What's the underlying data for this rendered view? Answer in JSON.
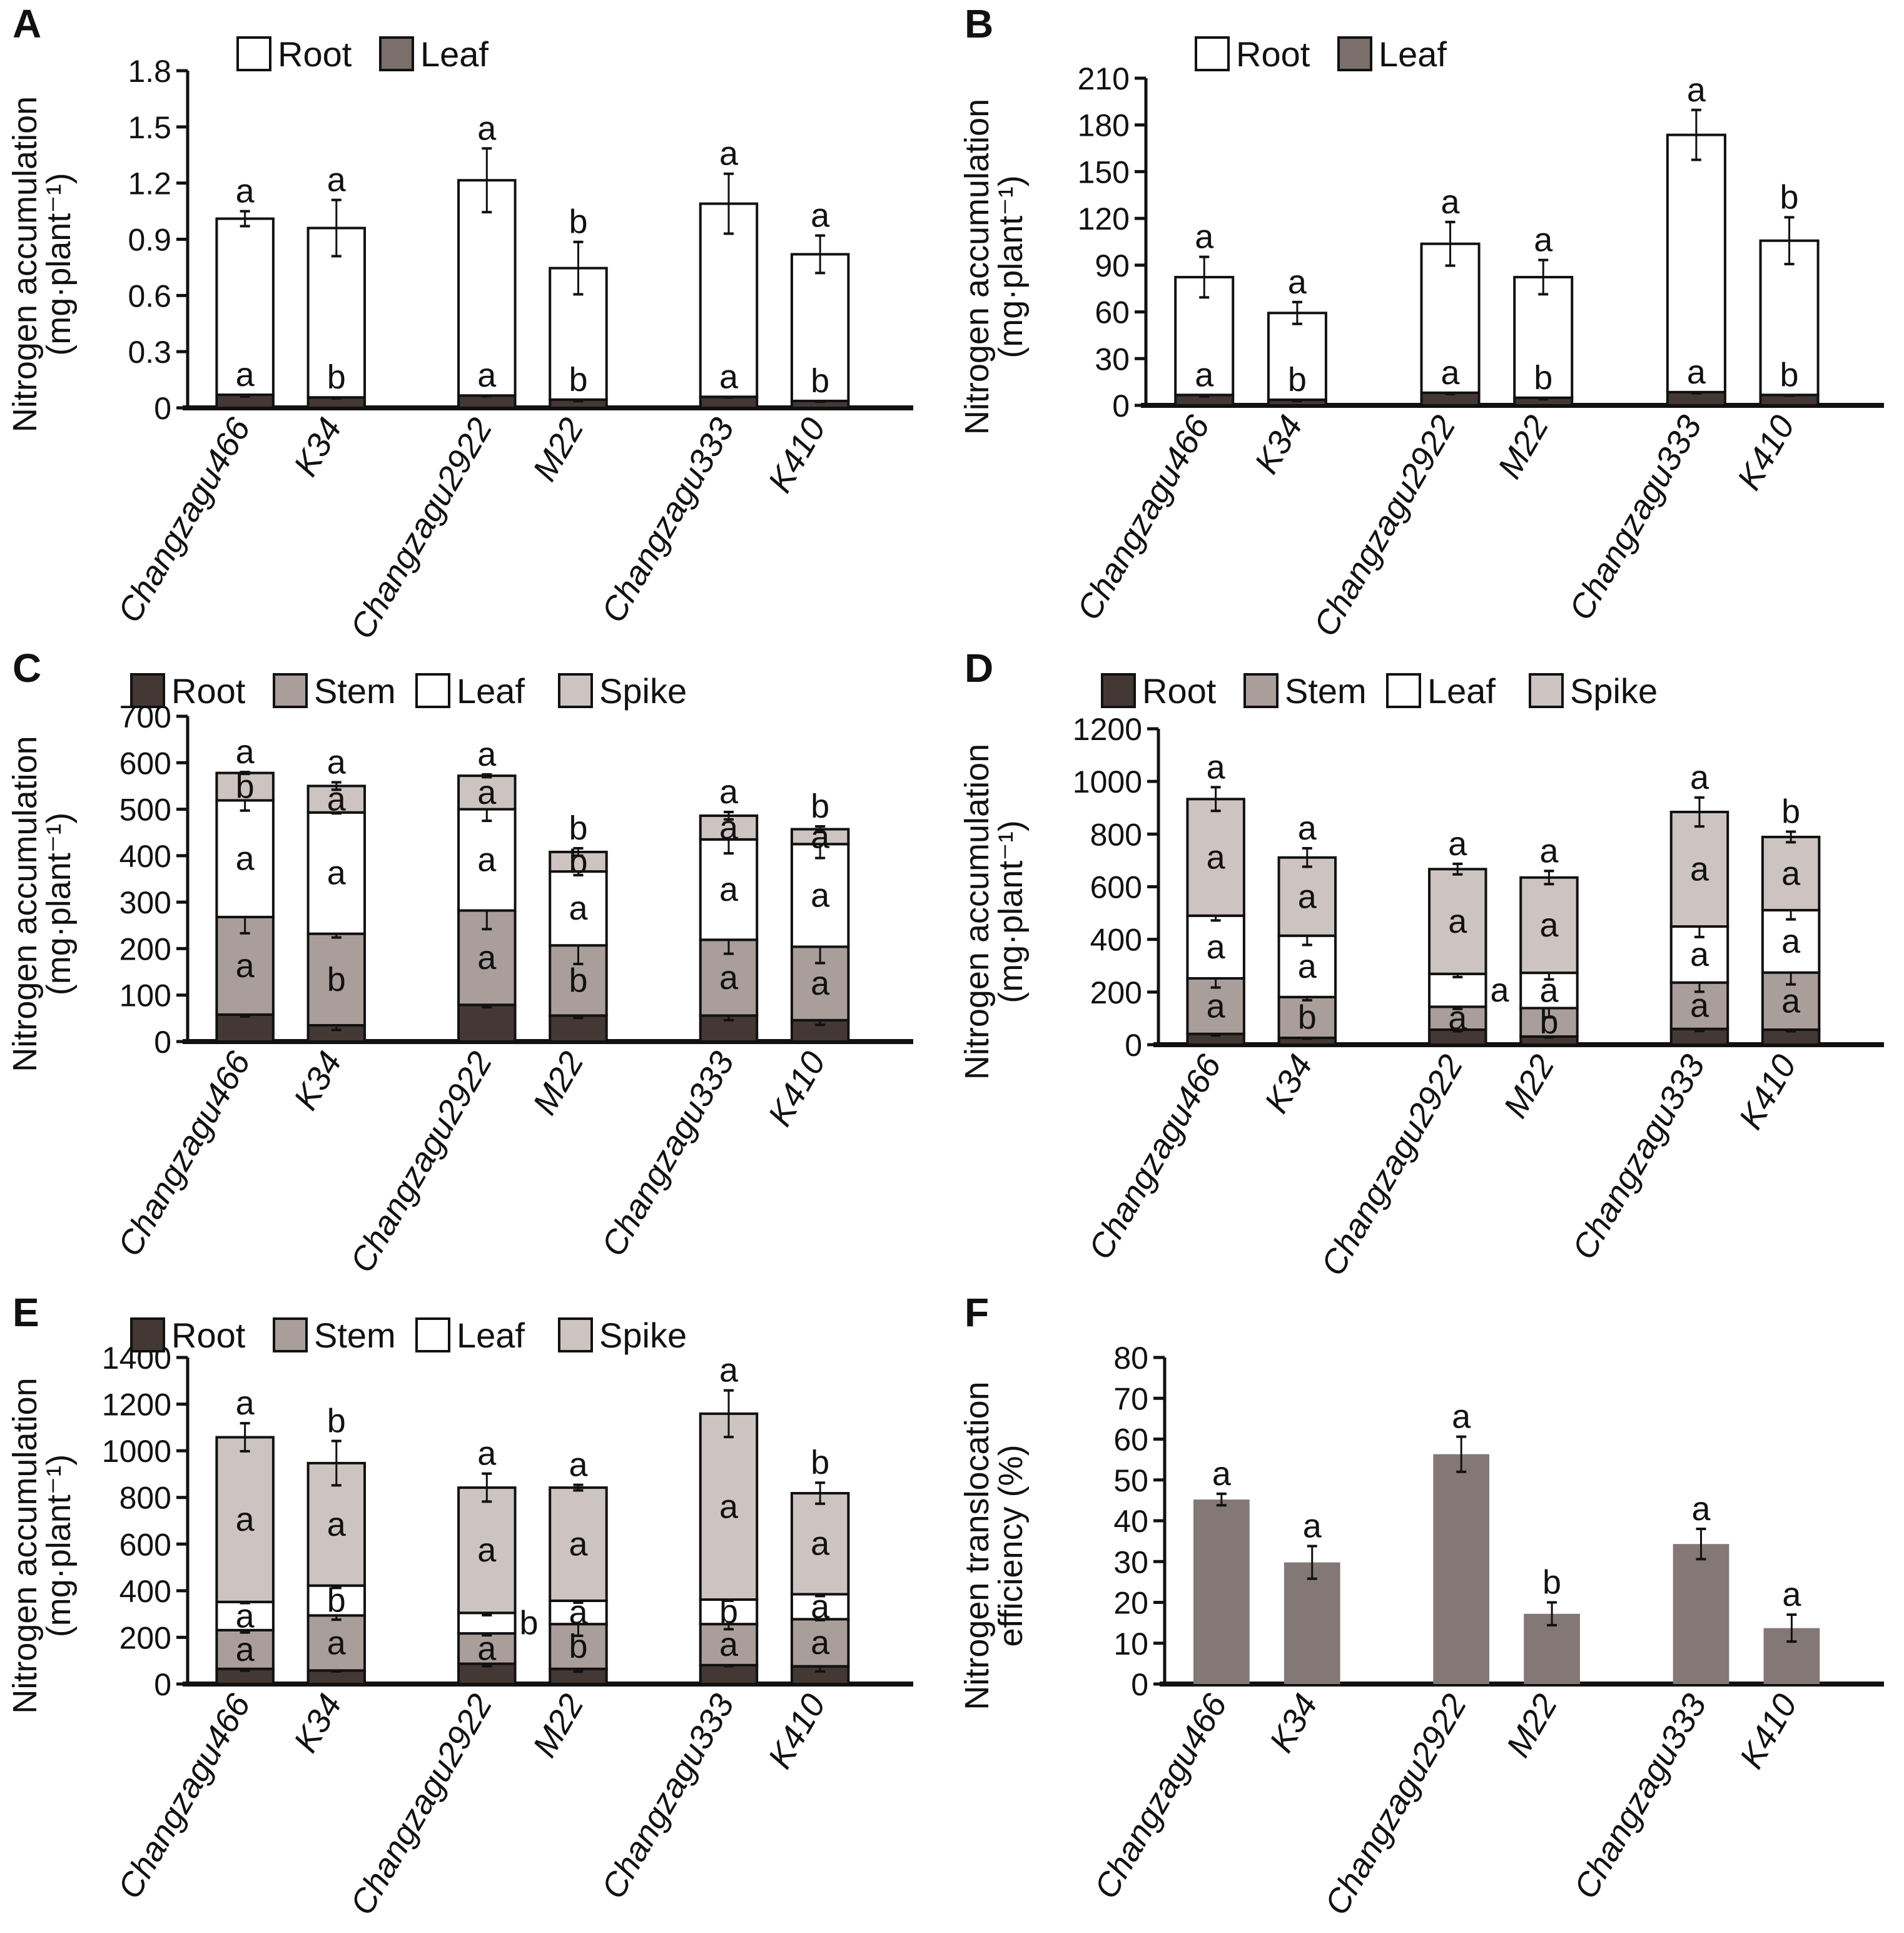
{
  "figure": {
    "panels": [
      "A",
      "B",
      "C",
      "D",
      "E",
      "F"
    ]
  },
  "chart_data": [
    {
      "panel": "A",
      "type": "bar",
      "stacked": true,
      "title": "",
      "ylabel": "Nitrogen accumulation",
      "ylabel_unit": "(mg·plant⁻¹)",
      "xlabel": "",
      "ylim": [
        0,
        1.8
      ],
      "yticks": [
        "0",
        "0.3",
        "0.6",
        "0.9",
        "1.2",
        "1.5",
        "1.8"
      ],
      "ytick_values": [
        0,
        0.3,
        0.6,
        0.9,
        1.2,
        1.5,
        1.8
      ],
      "categories": [
        "Changzagu466",
        "K34",
        "Changzagu2922",
        "M22",
        "Changzagu333",
        "K410"
      ],
      "groups": [
        [
          0,
          1
        ],
        [
          2,
          3
        ],
        [
          4,
          5
        ]
      ],
      "legend": [
        {
          "name": "Root",
          "color": "#ffffff"
        },
        {
          "name": "Leaf",
          "color": "#7a6f6b"
        }
      ],
      "legend_position": "top-left",
      "series": [
        {
          "name": "Leaf (bottom)",
          "color": "#433834",
          "values": [
            0.07,
            0.056,
            0.066,
            0.044,
            0.059,
            0.037
          ],
          "errors": [
            0.01,
            0.005,
            0.004,
            0.008,
            0.003,
            0.004
          ],
          "letters": [
            "a",
            "b",
            "a",
            "b",
            "a",
            "b"
          ]
        },
        {
          "name": "Root (top)",
          "color": "#ffffff",
          "values": [
            0.94,
            0.904,
            1.149,
            0.702,
            1.031,
            0.783
          ],
          "errors": [
            0.04,
            0.15,
            0.17,
            0.14,
            0.16,
            0.1
          ],
          "letters": [
            "a",
            "a",
            "a",
            "b",
            "a",
            "a"
          ]
        }
      ]
    },
    {
      "panel": "B",
      "type": "bar",
      "stacked": true,
      "title": "",
      "ylabel": "Nitrogen accumulation",
      "ylabel_unit": "(mg·plant⁻¹)",
      "xlabel": "",
      "ylim": [
        0,
        210
      ],
      "yticks": [
        "0",
        "30",
        "60",
        "90",
        "120",
        "150",
        "180",
        "210"
      ],
      "ytick_values": [
        0,
        30,
        60,
        90,
        120,
        150,
        180,
        210
      ],
      "categories": [
        "Changzagu466",
        "K34",
        "Changzagu2922",
        "M22",
        "Changzagu333",
        "K410"
      ],
      "groups": [
        [
          0,
          1
        ],
        [
          2,
          3
        ],
        [
          4,
          5
        ]
      ],
      "legend": [
        {
          "name": "Root",
          "color": "#ffffff"
        },
        {
          "name": "Leaf",
          "color": "#7a6f6b"
        }
      ],
      "legend_position": "top-left",
      "series": [
        {
          "name": "Leaf (bottom)",
          "color": "#433834",
          "values": [
            6.7,
            3.6,
            8.1,
            4.9,
            8.5,
            6.7
          ],
          "errors": [
            1,
            0.8,
            0.8,
            1,
            0.7,
            0.5
          ],
          "letters": [
            "a",
            "b",
            "a",
            "b",
            "a",
            "b"
          ]
        },
        {
          "name": "Root (top)",
          "color": "#ffffff",
          "values": [
            75.6,
            55.7,
            95.6,
            77.4,
            165.1,
            99
          ],
          "errors": [
            13,
            7,
            14,
            11,
            16,
            15
          ],
          "letters": [
            "a",
            "a",
            "a",
            "a",
            "a",
            "b"
          ]
        }
      ]
    },
    {
      "panel": "C",
      "type": "bar",
      "stacked": true,
      "title": "",
      "ylabel": "Nitrogen accumulation",
      "ylabel_unit": "(mg·plant⁻¹)",
      "xlabel": "",
      "ylim": [
        0,
        700
      ],
      "yticks": [
        "0",
        "100",
        "200",
        "300",
        "400",
        "500",
        "600",
        "700"
      ],
      "ytick_values": [
        0,
        100,
        200,
        300,
        400,
        500,
        600,
        700
      ],
      "categories": [
        "Changzagu466",
        "K34",
        "Changzagu2922",
        "M22",
        "Changzagu333",
        "K410"
      ],
      "groups": [
        [
          0,
          1
        ],
        [
          2,
          3
        ],
        [
          4,
          5
        ]
      ],
      "legend": [
        {
          "name": "Root",
          "color": "#433834"
        },
        {
          "name": "Stem",
          "color": "#aa9e9b"
        },
        {
          "name": "Leaf",
          "color": "#ffffff"
        },
        {
          "name": "Spike",
          "color": "#cdc4c1"
        }
      ],
      "legend_position": "top",
      "series": [
        {
          "name": "Root",
          "color": "#433834",
          "values": [
            58,
            35,
            79,
            56,
            56,
            46
          ],
          "errors": [
            4,
            10,
            5,
            5,
            10,
            10
          ],
          "letters": []
        },
        {
          "name": "Stem",
          "color": "#aa9e9b",
          "values": [
            210,
            197,
            203,
            151,
            163,
            158
          ],
          "errors": [
            35,
            8,
            40,
            40,
            30,
            35
          ],
          "letters": [
            "a",
            "b",
            "a",
            "b",
            "a",
            "a"
          ]
        },
        {
          "name": "Leaf",
          "color": "#ffffff",
          "values": [
            251,
            261,
            218,
            159,
            216,
            221
          ],
          "errors": [
            22,
            2,
            25,
            8,
            30,
            30
          ],
          "letters": [
            "a",
            "a",
            "a",
            "a",
            "a",
            "a"
          ]
        },
        {
          "name": "Spike",
          "color": "#cdc4c1",
          "values": [
            59,
            57,
            72,
            42,
            51,
            32
          ],
          "errors": [
            2,
            8,
            3,
            8,
            8,
            6
          ],
          "letters": [
            "b",
            "a",
            "a",
            "b",
            "a",
            "a"
          ]
        }
      ],
      "total_letters": [
        "a",
        "a",
        "a",
        "b",
        "a",
        "b"
      ]
    },
    {
      "panel": "D",
      "type": "bar",
      "stacked": true,
      "title": "",
      "ylabel": "Nitrogen accumulation",
      "ylabel_unit": "(mg·plant⁻¹)",
      "xlabel": "",
      "ylim": [
        0,
        1200
      ],
      "yticks": [
        "0",
        "200",
        "400",
        "600",
        "800",
        "1000",
        "1200"
      ],
      "ytick_values": [
        0,
        200,
        400,
        600,
        800,
        1000,
        1200
      ],
      "categories": [
        "Changzagu466",
        "K34",
        "Changzagu2922",
        "M22",
        "Changzagu333",
        "K410"
      ],
      "groups": [
        [
          0,
          1
        ],
        [
          2,
          3
        ],
        [
          4,
          5
        ]
      ],
      "legend": [
        {
          "name": "Root",
          "color": "#433834"
        },
        {
          "name": "Stem",
          "color": "#aa9e9b"
        },
        {
          "name": "Leaf",
          "color": "#ffffff"
        },
        {
          "name": "Spike",
          "color": "#cdc4c1"
        }
      ],
      "legend_position": "top",
      "series": [
        {
          "name": "Root",
          "color": "#433834",
          "values": [
            41,
            26,
            57,
            31,
            60,
            57
          ],
          "errors": [
            6,
            3,
            6,
            3,
            8,
            6
          ],
          "letters": []
        },
        {
          "name": "Stem",
          "color": "#aa9e9b",
          "values": [
            211,
            155,
            87,
            108,
            176,
            217
          ],
          "errors": [
            35,
            12,
            8,
            35,
            35,
            45
          ],
          "letters": [
            "a",
            "b",
            "a",
            "b",
            "a",
            "a"
          ]
        },
        {
          "name": "Leaf",
          "color": "#ffffff",
          "values": [
            238,
            233,
            125,
            134,
            213,
            237
          ],
          "errors": [
            18,
            35,
            12,
            25,
            40,
            35
          ],
          "letters": [
            "a",
            "a",
            "a",
            "a",
            "a",
            "a"
          ]
        },
        {
          "name": "Spike",
          "color": "#cdc4c1",
          "values": [
            443,
            297,
            398,
            362,
            435,
            278
          ],
          "errors": [
            45,
            35,
            20,
            25,
            55,
            20
          ],
          "letters": [
            "a",
            "a",
            "a",
            "a",
            "a",
            "a"
          ]
        }
      ],
      "total_letters": [
        "a",
        "a",
        "a",
        "a",
        "a",
        "b"
      ]
    },
    {
      "panel": "E",
      "type": "bar",
      "stacked": true,
      "title": "",
      "ylabel": "Nitrogen accumulation",
      "ylabel_unit": "(mg·plant⁻¹)",
      "xlabel": "",
      "ylim": [
        0,
        1400
      ],
      "yticks": [
        "0",
        "200",
        "400",
        "600",
        "800",
        "1000",
        "1200",
        "1400"
      ],
      "ytick_values": [
        0,
        200,
        400,
        600,
        800,
        1000,
        1200,
        1400
      ],
      "categories": [
        "Changzagu466",
        "K34",
        "Changzagu2922",
        "M22",
        "Changzagu333",
        "K410"
      ],
      "groups": [
        [
          0,
          1
        ],
        [
          2,
          3
        ],
        [
          4,
          5
        ]
      ],
      "legend": [
        {
          "name": "Root",
          "color": "#433834"
        },
        {
          "name": "Stem",
          "color": "#aa9e9b"
        },
        {
          "name": "Leaf",
          "color": "#ffffff"
        },
        {
          "name": "Spike",
          "color": "#cdc4c1"
        }
      ],
      "legend_position": "top",
      "series": [
        {
          "name": "Root",
          "color": "#433834",
          "values": [
            65,
            58,
            87,
            65,
            81,
            76
          ],
          "errors": [
            8,
            4,
            10,
            12,
            4,
            22
          ],
          "letters": []
        },
        {
          "name": "Stem",
          "color": "#aa9e9b",
          "values": [
            166,
            236,
            130,
            192,
            176,
            202
          ],
          "errors": [
            10,
            18,
            8,
            50,
            22,
            4
          ],
          "letters": [
            "a",
            "a",
            "a",
            "b",
            "a",
            "a"
          ]
        },
        {
          "name": "Leaf",
          "color": "#ffffff",
          "values": [
            121,
            128,
            88,
            100,
            105,
            107
          ],
          "errors": [
            5,
            10,
            10,
            8,
            5,
            8
          ],
          "letters": [
            "a",
            "b",
            "b",
            "a",
            "b",
            "a"
          ]
        },
        {
          "name": "Spike",
          "color": "#cdc4c1",
          "values": [
            706,
            525,
            537,
            485,
            797,
            433
          ],
          "errors": [
            60,
            95,
            60,
            12,
            100,
            45
          ],
          "letters": [
            "a",
            "a",
            "a",
            "a",
            "a",
            "a"
          ]
        }
      ],
      "total_letters": [
        "a",
        "b",
        "a",
        "a",
        "a",
        "b"
      ]
    },
    {
      "panel": "F",
      "type": "bar",
      "stacked": false,
      "title": "",
      "ylabel": "Nitrogen translocation",
      "ylabel_unit": "efficiency (%)",
      "xlabel": "",
      "ylim": [
        0,
        80
      ],
      "yticks": [
        "0",
        "10",
        "20",
        "30",
        "40",
        "50",
        "60",
        "70",
        "80"
      ],
      "ytick_values": [
        0,
        10,
        20,
        30,
        40,
        50,
        60,
        70,
        80
      ],
      "categories": [
        "Changzagu466",
        "K34",
        "Changzagu2922",
        "M22",
        "Changzagu333",
        "K410"
      ],
      "groups": [
        [
          0,
          1
        ],
        [
          2,
          3
        ],
        [
          4,
          5
        ]
      ],
      "legend": [],
      "series": [
        {
          "name": "Translocation efficiency",
          "color": "#837875",
          "values": [
            45.2,
            29.8,
            56.3,
            17.2,
            34.3,
            13.7
          ],
          "errors": [
            1.4,
            4,
            4.3,
            2.8,
            3.7,
            3.3
          ],
          "letters": [
            "a",
            "a",
            "a",
            "b",
            "a",
            "a"
          ]
        }
      ]
    }
  ]
}
